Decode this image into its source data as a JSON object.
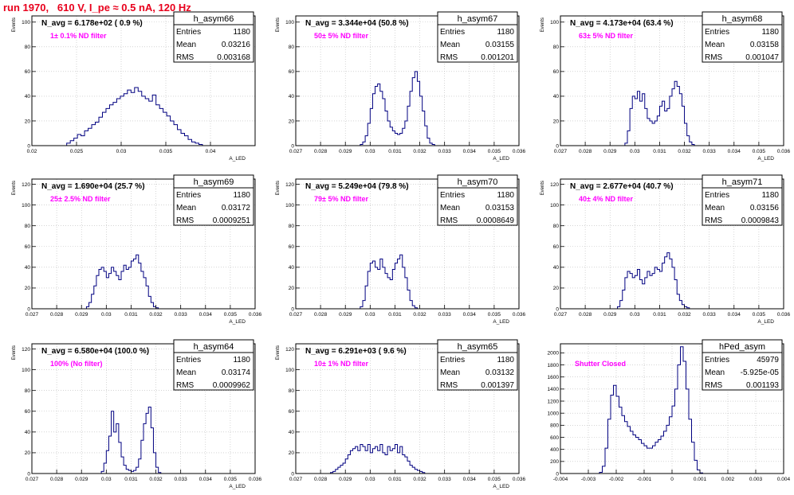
{
  "page_title": "run 1970,   610 V, I_pe ≈ 0.5 nA, 120 Hz",
  "colors": {
    "hist_line": "#000080",
    "annotation": "#ff00ff",
    "title": "#e8001c",
    "grid": "#bbbbbb"
  },
  "chart_data": [
    {
      "type": "histogram",
      "name": "h_asym66",
      "ylabel": "Events",
      "xlabel": "A_LED",
      "navg": "N_avg = 6.178e+02 ( 0.9 %)",
      "note": "1± 0.1% ND filter",
      "stats": {
        "Entries": "1180",
        "Mean": "0.03216",
        "RMS": "0.003168"
      },
      "xlim": [
        0.02,
        0.045
      ],
      "ylim": [
        0,
        105
      ],
      "grid": true,
      "xticks": [
        {
          "v": 0.02,
          "label": "0.02"
        },
        {
          "v": 0.025,
          "label": "0.025"
        },
        {
          "v": 0.03,
          "label": "0.03"
        },
        {
          "v": 0.035,
          "label": "0.035"
        },
        {
          "v": 0.04,
          "label": "0.04"
        }
      ],
      "yticks": [
        {
          "v": 0,
          "label": "0"
        },
        {
          "v": 20,
          "label": "20"
        },
        {
          "v": 40,
          "label": "40"
        },
        {
          "v": 60,
          "label": "60"
        },
        {
          "v": 80,
          "label": "80"
        },
        {
          "v": 100,
          "label": "100"
        }
      ],
      "x0": 0.0239,
      "binw": 0.0004,
      "counts": [
        2,
        4,
        6,
        9,
        8,
        12,
        14,
        17,
        19,
        23,
        27,
        30,
        33,
        35,
        38,
        40,
        42,
        45,
        43,
        47,
        44,
        40,
        38,
        36,
        41,
        33,
        30,
        27,
        24,
        20,
        17,
        13,
        10,
        8,
        5,
        3,
        2,
        1
      ]
    },
    {
      "type": "histogram",
      "name": "h_asym67",
      "ylabel": "Events",
      "xlabel": "A_LED",
      "navg": "N_avg = 3.344e+04 (50.8 %)",
      "note": "50± 5% ND filter",
      "stats": {
        "Entries": "1180",
        "Mean": "0.03155",
        "RMS": "0.001201"
      },
      "xlim": [
        0.027,
        0.036
      ],
      "ylim": [
        0,
        105
      ],
      "grid": true,
      "xticks": [
        {
          "v": 0.027,
          "label": "0.027"
        },
        {
          "v": 0.028,
          "label": "0.028"
        },
        {
          "v": 0.029,
          "label": "0.029"
        },
        {
          "v": 0.03,
          "label": "0.03"
        },
        {
          "v": 0.031,
          "label": "0.031"
        },
        {
          "v": 0.032,
          "label": "0.032"
        },
        {
          "v": 0.033,
          "label": "0.033"
        },
        {
          "v": 0.034,
          "label": "0.034"
        },
        {
          "v": 0.035,
          "label": "0.035"
        },
        {
          "v": 0.036,
          "label": "0.036"
        }
      ],
      "yticks": [
        {
          "v": 0,
          "label": "0"
        },
        {
          "v": 20,
          "label": "20"
        },
        {
          "v": 40,
          "label": "40"
        },
        {
          "v": 60,
          "label": "60"
        },
        {
          "v": 80,
          "label": "80"
        },
        {
          "v": 100,
          "label": "100"
        }
      ],
      "x0": 0.0296,
      "binw": 0.0001,
      "counts": [
        1,
        3,
        8,
        18,
        30,
        42,
        48,
        50,
        44,
        38,
        28,
        20,
        15,
        12,
        10,
        9,
        10,
        14,
        20,
        32,
        44,
        55,
        60,
        52,
        40,
        28,
        16,
        6,
        2,
        1
      ]
    },
    {
      "type": "histogram",
      "name": "h_asym68",
      "ylabel": "Events",
      "xlabel": "A_LED",
      "navg": "N_avg = 4.173e+04 (63.4 %)",
      "note": "63± 5% ND filter",
      "stats": {
        "Entries": "1180",
        "Mean": "0.03158",
        "RMS": "0.001047"
      },
      "xlim": [
        0.027,
        0.036
      ],
      "ylim": [
        0,
        105
      ],
      "grid": true,
      "xticks": [
        {
          "v": 0.027,
          "label": "0.027"
        },
        {
          "v": 0.028,
          "label": "0.028"
        },
        {
          "v": 0.029,
          "label": "0.029"
        },
        {
          "v": 0.03,
          "label": "0.03"
        },
        {
          "v": 0.031,
          "label": "0.031"
        },
        {
          "v": 0.032,
          "label": "0.032"
        },
        {
          "v": 0.033,
          "label": "0.033"
        },
        {
          "v": 0.034,
          "label": "0.034"
        },
        {
          "v": 0.035,
          "label": "0.035"
        },
        {
          "v": 0.036,
          "label": "0.036"
        }
      ],
      "yticks": [
        {
          "v": 0,
          "label": "0"
        },
        {
          "v": 20,
          "label": "20"
        },
        {
          "v": 40,
          "label": "40"
        },
        {
          "v": 60,
          "label": "60"
        },
        {
          "v": 80,
          "label": "80"
        },
        {
          "v": 100,
          "label": "100"
        }
      ],
      "x0": 0.0296,
      "binw": 0.0001,
      "counts": [
        2,
        12,
        30,
        40,
        38,
        44,
        36,
        42,
        30,
        22,
        20,
        18,
        20,
        24,
        32,
        36,
        28,
        30,
        40,
        46,
        52,
        48,
        42,
        32,
        18,
        8,
        3,
        1
      ]
    },
    {
      "type": "histogram",
      "name": "h_asym69",
      "ylabel": "Events",
      "xlabel": "A_LED",
      "navg": "N_avg = 1.690e+04 (25.7 %)",
      "note": "25± 2.5% ND filter",
      "stats": {
        "Entries": "1180",
        "Mean": "0.03172",
        "RMS": "0.0009251"
      },
      "xlim": [
        0.027,
        0.036
      ],
      "ylim": [
        0,
        125
      ],
      "grid": true,
      "xticks": [
        {
          "v": 0.027,
          "label": "0.027"
        },
        {
          "v": 0.028,
          "label": "0.028"
        },
        {
          "v": 0.029,
          "label": "0.029"
        },
        {
          "v": 0.03,
          "label": "0.03"
        },
        {
          "v": 0.031,
          "label": "0.031"
        },
        {
          "v": 0.032,
          "label": "0.032"
        },
        {
          "v": 0.033,
          "label": "0.033"
        },
        {
          "v": 0.034,
          "label": "0.034"
        },
        {
          "v": 0.035,
          "label": "0.035"
        },
        {
          "v": 0.036,
          "label": "0.036"
        }
      ],
      "yticks": [
        {
          "v": 0,
          "label": "0"
        },
        {
          "v": 20,
          "label": "20"
        },
        {
          "v": 40,
          "label": "40"
        },
        {
          "v": 60,
          "label": "60"
        },
        {
          "v": 80,
          "label": "80"
        },
        {
          "v": 100,
          "label": "100"
        },
        {
          "v": 120,
          "label": "120"
        }
      ],
      "x0": 0.0292,
      "binw": 0.0001,
      "counts": [
        2,
        6,
        14,
        22,
        32,
        38,
        40,
        36,
        30,
        34,
        40,
        36,
        32,
        28,
        36,
        42,
        38,
        40,
        46,
        48,
        52,
        44,
        36,
        30,
        22,
        12,
        6,
        2,
        1
      ]
    },
    {
      "type": "histogram",
      "name": "h_asym70",
      "ylabel": "Events",
      "xlabel": "A_LED",
      "navg": "N_avg = 5.249e+04 (79.8 %)",
      "note": "79± 5% ND filter",
      "stats": {
        "Entries": "1180",
        "Mean": "0.03153",
        "RMS": "0.0008649"
      },
      "xlim": [
        0.027,
        0.036
      ],
      "ylim": [
        0,
        125
      ],
      "grid": true,
      "xticks": [
        {
          "v": 0.027,
          "label": "0.027"
        },
        {
          "v": 0.028,
          "label": "0.028"
        },
        {
          "v": 0.029,
          "label": "0.029"
        },
        {
          "v": 0.03,
          "label": "0.03"
        },
        {
          "v": 0.031,
          "label": "0.031"
        },
        {
          "v": 0.032,
          "label": "0.032"
        },
        {
          "v": 0.033,
          "label": "0.033"
        },
        {
          "v": 0.034,
          "label": "0.034"
        },
        {
          "v": 0.035,
          "label": "0.035"
        },
        {
          "v": 0.036,
          "label": "0.036"
        }
      ],
      "yticks": [
        {
          "v": 0,
          "label": "0"
        },
        {
          "v": 20,
          "label": "20"
        },
        {
          "v": 40,
          "label": "40"
        },
        {
          "v": 60,
          "label": "60"
        },
        {
          "v": 80,
          "label": "80"
        },
        {
          "v": 100,
          "label": "100"
        },
        {
          "v": 120,
          "label": "120"
        }
      ],
      "x0": 0.0296,
      "binw": 0.0001,
      "counts": [
        2,
        8,
        22,
        36,
        44,
        46,
        40,
        38,
        48,
        40,
        34,
        30,
        28,
        38,
        44,
        48,
        52,
        40,
        30,
        18,
        8,
        3,
        1
      ]
    },
    {
      "type": "histogram",
      "name": "h_asym71",
      "ylabel": "Events",
      "xlabel": "A_LED",
      "navg": "N_avg = 2.677e+04 (40.7 %)",
      "note": "40± 4% ND filter",
      "stats": {
        "Entries": "1180",
        "Mean": "0.03156",
        "RMS": "0.0009843"
      },
      "xlim": [
        0.027,
        0.036
      ],
      "ylim": [
        0,
        125
      ],
      "grid": true,
      "xticks": [
        {
          "v": 0.027,
          "label": "0.027"
        },
        {
          "v": 0.028,
          "label": "0.028"
        },
        {
          "v": 0.029,
          "label": "0.029"
        },
        {
          "v": 0.03,
          "label": "0.03"
        },
        {
          "v": 0.031,
          "label": "0.031"
        },
        {
          "v": 0.032,
          "label": "0.032"
        },
        {
          "v": 0.033,
          "label": "0.033"
        },
        {
          "v": 0.034,
          "label": "0.034"
        },
        {
          "v": 0.035,
          "label": "0.035"
        },
        {
          "v": 0.036,
          "label": "0.036"
        }
      ],
      "yticks": [
        {
          "v": 0,
          "label": "0"
        },
        {
          "v": 20,
          "label": "20"
        },
        {
          "v": 40,
          "label": "40"
        },
        {
          "v": 60,
          "label": "60"
        },
        {
          "v": 80,
          "label": "80"
        },
        {
          "v": 100,
          "label": "100"
        },
        {
          "v": 120,
          "label": "120"
        }
      ],
      "x0": 0.0293,
      "binw": 0.0001,
      "counts": [
        2,
        8,
        18,
        30,
        36,
        34,
        30,
        32,
        38,
        28,
        24,
        30,
        36,
        32,
        34,
        40,
        38,
        36,
        44,
        50,
        54,
        48,
        40,
        28,
        14,
        8,
        4,
        2,
        1
      ]
    },
    {
      "type": "histogram",
      "name": "h_asym64",
      "ylabel": "Events",
      "xlabel": "A_LED",
      "navg": "N_avg = 6.580e+04 (100.0 %)",
      "note": "100% (No filter)",
      "stats": {
        "Entries": "1180",
        "Mean": "0.03174",
        "RMS": "0.0009962"
      },
      "xlim": [
        0.027,
        0.036
      ],
      "ylim": [
        0,
        125
      ],
      "grid": true,
      "xticks": [
        {
          "v": 0.027,
          "label": "0.027"
        },
        {
          "v": 0.028,
          "label": "0.028"
        },
        {
          "v": 0.029,
          "label": "0.029"
        },
        {
          "v": 0.03,
          "label": "0.03"
        },
        {
          "v": 0.031,
          "label": "0.031"
        },
        {
          "v": 0.032,
          "label": "0.032"
        },
        {
          "v": 0.033,
          "label": "0.033"
        },
        {
          "v": 0.034,
          "label": "0.034"
        },
        {
          "v": 0.035,
          "label": "0.035"
        },
        {
          "v": 0.036,
          "label": "0.036"
        }
      ],
      "yticks": [
        {
          "v": 0,
          "label": "0"
        },
        {
          "v": 20,
          "label": "20"
        },
        {
          "v": 40,
          "label": "40"
        },
        {
          "v": 60,
          "label": "60"
        },
        {
          "v": 80,
          "label": "80"
        },
        {
          "v": 100,
          "label": "100"
        },
        {
          "v": 120,
          "label": "120"
        }
      ],
      "x0": 0.0298,
      "binw": 0.0001,
      "counts": [
        2,
        10,
        22,
        36,
        60,
        40,
        48,
        30,
        16,
        8,
        4,
        3,
        2,
        3,
        6,
        14,
        32,
        48,
        58,
        64,
        44,
        20,
        6,
        1
      ]
    },
    {
      "type": "histogram",
      "name": "h_asym65",
      "ylabel": "Events",
      "xlabel": "A_LED",
      "navg": "N_avg = 6.291e+03 ( 9.6 %)",
      "note": "10± 1% ND filter",
      "stats": {
        "Entries": "1180",
        "Mean": "0.03132",
        "RMS": "0.001397"
      },
      "xlim": [
        0.027,
        0.036
      ],
      "ylim": [
        0,
        125
      ],
      "grid": true,
      "xticks": [
        {
          "v": 0.027,
          "label": "0.027"
        },
        {
          "v": 0.028,
          "label": "0.028"
        },
        {
          "v": 0.029,
          "label": "0.029"
        },
        {
          "v": 0.03,
          "label": "0.03"
        },
        {
          "v": 0.031,
          "label": "0.031"
        },
        {
          "v": 0.032,
          "label": "0.032"
        },
        {
          "v": 0.033,
          "label": "0.033"
        },
        {
          "v": 0.034,
          "label": "0.034"
        },
        {
          "v": 0.035,
          "label": "0.035"
        },
        {
          "v": 0.036,
          "label": "0.036"
        }
      ],
      "yticks": [
        {
          "v": 0,
          "label": "0"
        },
        {
          "v": 20,
          "label": "20"
        },
        {
          "v": 40,
          "label": "40"
        },
        {
          "v": 60,
          "label": "60"
        },
        {
          "v": 80,
          "label": "80"
        },
        {
          "v": 100,
          "label": "100"
        },
        {
          "v": 120,
          "label": "120"
        }
      ],
      "x0": 0.0284,
      "binw": 0.0001,
      "counts": [
        1,
        2,
        4,
        6,
        8,
        10,
        14,
        18,
        22,
        24,
        26,
        22,
        28,
        26,
        22,
        28,
        20,
        24,
        26,
        22,
        28,
        20,
        18,
        26,
        22,
        24,
        28,
        20,
        26,
        18,
        16,
        12,
        8,
        6,
        4,
        3,
        2,
        1
      ]
    },
    {
      "type": "histogram",
      "name": "hPed_asym",
      "ylabel": "",
      "xlabel": "",
      "navg": "",
      "note": "Shutter Closed",
      "stats": {
        "Entries": "45979",
        "Mean": "-5.925e-05",
        "RMS": "0.001193"
      },
      "xlim": [
        -0.004,
        0.004
      ],
      "ylim": [
        0,
        2150
      ],
      "grid": true,
      "xticks": [
        {
          "v": -0.004,
          "label": "-0.004"
        },
        {
          "v": -0.003,
          "label": "-0.003"
        },
        {
          "v": -0.002,
          "label": "-0.002"
        },
        {
          "v": -0.001,
          "label": "-0.001"
        },
        {
          "v": 0,
          "label": "0"
        },
        {
          "v": 0.001,
          "label": "0.001"
        },
        {
          "v": 0.002,
          "label": "0.002"
        },
        {
          "v": 0.003,
          "label": "0.003"
        },
        {
          "v": 0.004,
          "label": "0.004"
        }
      ],
      "yticks": [
        {
          "v": 0,
          "label": "0"
        },
        {
          "v": 200,
          "label": "200"
        },
        {
          "v": 400,
          "label": "400"
        },
        {
          "v": 600,
          "label": "600"
        },
        {
          "v": 800,
          "label": "800"
        },
        {
          "v": 1000,
          "label": "1000"
        },
        {
          "v": 1200,
          "label": "1200"
        },
        {
          "v": 1400,
          "label": "1400"
        },
        {
          "v": 1600,
          "label": "1600"
        },
        {
          "v": 1800,
          "label": "1800"
        },
        {
          "v": 2000,
          "label": "2000"
        }
      ],
      "x0": -0.0026,
      "binw": 0.0001,
      "counts": [
        20,
        120,
        420,
        900,
        1300,
        1460,
        1280,
        1100,
        960,
        860,
        780,
        700,
        640,
        600,
        560,
        500,
        460,
        420,
        420,
        460,
        520,
        560,
        620,
        700,
        800,
        940,
        1120,
        1400,
        1800,
        2100,
        1860,
        1400,
        900,
        520,
        220,
        60,
        10
      ]
    }
  ]
}
